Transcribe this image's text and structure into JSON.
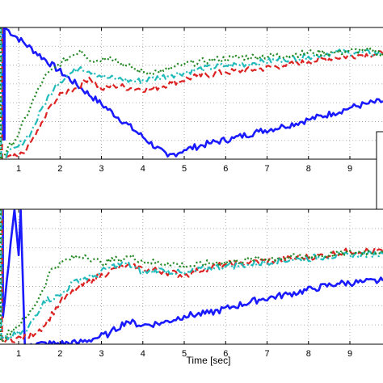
{
  "chart_data": [
    {
      "type": "line",
      "title": "",
      "xlabel": "",
      "ylabel": "",
      "xlim": [
        0.55,
        9.8
      ],
      "ylim": [
        0,
        10
      ],
      "grid": true,
      "x_ticks": [
        "1",
        "2",
        "3",
        "4",
        "5",
        "6",
        "7",
        "8",
        "9"
      ],
      "series": [
        {
          "color": "#1a1aff",
          "style": "solid",
          "x": [
            0.62,
            0.62,
            0.66,
            0.66,
            4.6,
            5.0,
            5.6,
            6.2,
            6.8,
            7.4,
            8.0,
            8.6,
            9.0,
            9.4,
            9.8
          ],
          "y": [
            10,
            1.5,
            1.5,
            10,
            0.2,
            0.7,
            1.2,
            1.6,
            2.1,
            2.5,
            3.0,
            3.5,
            3.9,
            4.2,
            4.4
          ]
        },
        {
          "color": "#dd2222",
          "style": "dashed",
          "x": [
            0.6,
            0.6,
            1.0,
            1.2,
            1.5,
            1.8,
            2.1,
            2.4,
            2.7,
            3.0,
            3.3,
            3.7,
            4.2,
            4.7,
            5.3,
            6.0,
            6.7,
            7.4,
            8.0,
            8.6,
            9.2,
            9.8
          ],
          "y": [
            10,
            0,
            0.2,
            0.8,
            2.3,
            4.2,
            5.1,
            5.4,
            6.2,
            5.3,
            5.6,
            5.4,
            5.3,
            5.8,
            6.3,
            6.6,
            6.8,
            7.1,
            7.4,
            7.7,
            7.9,
            8.0
          ]
        },
        {
          "color": "#22bbbb",
          "style": "dashdot",
          "x": [
            0.58,
            0.58,
            1.0,
            1.3,
            1.6,
            1.9,
            2.2,
            2.5,
            2.8,
            3.1,
            3.4,
            3.8,
            4.2,
            4.7,
            5.3,
            6.0,
            6.7,
            7.4,
            8.0,
            8.6,
            9.2,
            9.8
          ],
          "y": [
            10,
            0,
            1.0,
            2.0,
            4.1,
            5.7,
            6.4,
            7.0,
            6.6,
            6.2,
            6.1,
            5.9,
            6.1,
            6.4,
            6.8,
            7.1,
            7.3,
            7.6,
            7.8,
            8.1,
            8.1,
            8.0
          ]
        },
        {
          "color": "#228822",
          "style": "dotted",
          "x": [
            0.56,
            0.56,
            1.0,
            1.3,
            1.6,
            1.9,
            2.2,
            2.5,
            2.8,
            3.2,
            3.6,
            4.0,
            4.5,
            5.0,
            5.6,
            6.2,
            6.8,
            7.5,
            8.1,
            8.7,
            9.3,
            9.8
          ],
          "y": [
            10,
            0,
            1.9,
            4.1,
            6.1,
            7.0,
            7.7,
            8.3,
            7.4,
            7.8,
            7.1,
            6.6,
            6.7,
            7.2,
            7.5,
            7.7,
            7.8,
            7.9,
            8.1,
            8.1,
            8.3,
            8.0
          ]
        }
      ]
    },
    {
      "type": "line",
      "title": "",
      "xlabel": "Time [sec]",
      "ylabel": "",
      "xlim": [
        0.55,
        9.8
      ],
      "ylim": [
        0,
        10
      ],
      "grid": true,
      "x_ticks": [
        "1",
        "2",
        "3",
        "4",
        "5",
        "6",
        "7",
        "8",
        "9"
      ],
      "series": [
        {
          "color": "#1a1aff",
          "style": "solid",
          "x": [
            0.62,
            0.62,
            0.9,
            1.0,
            1.05,
            1.15,
            1.3,
            2.4,
            2.8,
            3.2,
            3.6,
            4.0,
            4.5,
            5.0,
            5.6,
            6.2,
            6.8,
            7.5,
            8.1,
            8.7,
            9.3,
            9.8
          ],
          "y": [
            10,
            2.0,
            10,
            6.6,
            10,
            0,
            0,
            0.1,
            0.4,
            0.8,
            1.7,
            1.4,
            1.6,
            2.1,
            2.3,
            2.8,
            3.3,
            3.7,
            4.1,
            4.5,
            4.6,
            4.7
          ]
        },
        {
          "color": "#dd2222",
          "style": "dashed",
          "x": [
            0.6,
            0.6,
            1.2,
            1.6,
            2.0,
            2.4,
            2.8,
            3.2,
            3.6,
            4.0,
            4.5,
            5.0,
            5.5,
            6.0,
            6.6,
            7.2,
            7.8,
            8.4,
            9.0,
            9.8
          ],
          "y": [
            10,
            0.3,
            0.5,
            1.3,
            3.1,
            4.1,
            4.8,
            5.4,
            5.8,
            5.6,
            5.4,
            5.1,
            5.6,
            5.9,
            6.1,
            6.2,
            6.4,
            6.6,
            6.9,
            6.9
          ]
        },
        {
          "color": "#22bbbb",
          "style": "dashdot",
          "x": [
            0.58,
            0.58,
            1.2,
            1.6,
            2.0,
            2.4,
            2.8,
            3.2,
            3.6,
            4.0,
            4.5,
            5.0,
            5.5,
            6.0,
            6.6,
            7.2,
            7.8,
            8.4,
            9.0,
            9.8
          ],
          "y": [
            10,
            0.3,
            1.0,
            3.2,
            3.6,
            4.8,
            5.0,
            5.7,
            6.0,
            5.3,
            5.5,
            5.2,
            5.6,
            5.8,
            5.9,
            6.2,
            6.3,
            6.5,
            6.6,
            6.7
          ]
        },
        {
          "color": "#228822",
          "style": "dotted",
          "x": [
            0.56,
            0.56,
            1.2,
            1.5,
            1.8,
            2.2,
            2.6,
            3.0,
            3.4,
            3.7,
            4.1,
            4.6,
            5.1,
            5.6,
            6.1,
            6.7,
            7.3,
            7.9,
            8.5,
            9.1,
            9.8
          ],
          "y": [
            10,
            0.3,
            2.0,
            3.5,
            5.6,
            6.3,
            6.6,
            6.0,
            6.3,
            6.5,
            6.1,
            6.0,
            5.8,
            6.0,
            6.1,
            6.3,
            6.4,
            6.5,
            6.6,
            6.8,
            6.9
          ]
        }
      ]
    }
  ],
  "colors": {
    "background": "#ffffff",
    "axis": "#000000",
    "grid": "#9a9a9a"
  }
}
